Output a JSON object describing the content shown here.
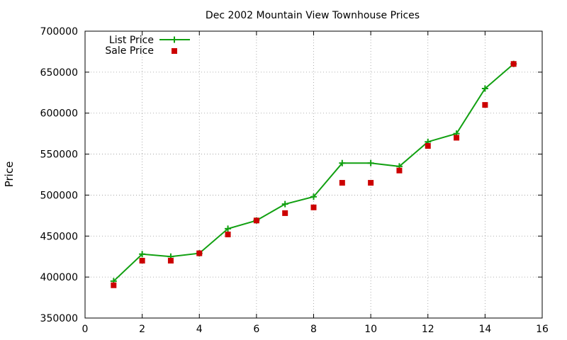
{
  "chart_data": {
    "type": "line",
    "title": "Dec 2002 Mountain View Townhouse Prices",
    "xlabel": "",
    "ylabel": "Price",
    "xlim": [
      0,
      16
    ],
    "ylim": [
      350000,
      700000
    ],
    "x_ticks": [
      0,
      2,
      4,
      6,
      8,
      10,
      12,
      14,
      16
    ],
    "y_ticks": [
      350000,
      400000,
      450000,
      500000,
      550000,
      600000,
      650000,
      700000
    ],
    "grid": true,
    "legend_position": "top-left",
    "x": [
      1,
      2,
      3,
      4,
      5,
      6,
      7,
      8,
      9,
      10,
      11,
      12,
      13,
      14,
      15
    ],
    "series": [
      {
        "name": "List Price",
        "style": "line+cross",
        "color": "#11a011",
        "values": [
          395000,
          428000,
          425000,
          429000,
          459000,
          469000,
          489000,
          498000,
          539000,
          539000,
          535000,
          565000,
          575000,
          630000,
          660000
        ]
      },
      {
        "name": "Sale Price",
        "style": "square-points",
        "color": "#cc0000",
        "values": [
          390000,
          420000,
          420000,
          429000,
          452000,
          469000,
          478000,
          485000,
          515000,
          515000,
          530000,
          560000,
          570000,
          610000,
          660000
        ]
      }
    ]
  }
}
